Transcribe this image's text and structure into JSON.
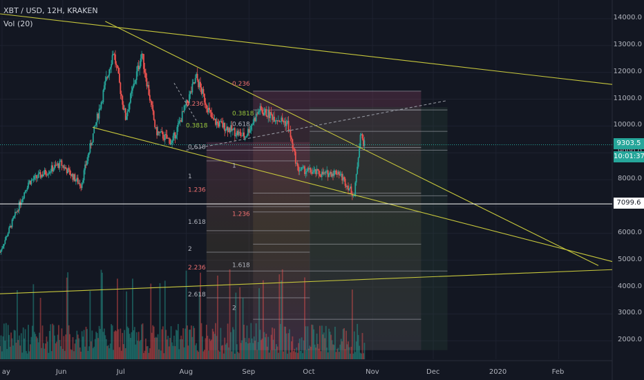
{
  "header": {
    "symbol_line": "XBT / USD, 12H, KRAKEN",
    "indicator": "Vol (20)"
  },
  "y_axis": {
    "ticks": [
      "14000.0",
      "13000.0",
      "12000.0",
      "11000.0",
      "10000.0",
      "9000.0",
      "8000.0",
      "7000.0",
      "6000.0",
      "5000.0",
      "4000.0",
      "3000.0",
      "2000.0"
    ]
  },
  "x_axis": {
    "ticks": [
      "ay",
      "Jun",
      "Jul",
      "Aug",
      "Sep",
      "Oct",
      "Nov",
      "Dec",
      "2020",
      "Feb"
    ]
  },
  "price_tags": {
    "last_price": "9303.5",
    "countdown": "10:01:37",
    "level": "7099.6"
  },
  "fib_labels": {
    "set1": [
      "0.618",
      "1",
      "1.236",
      "1.618",
      "2",
      "2.236",
      "2.618"
    ],
    "set2": [
      "0.236",
      "0.3818",
      "0.618",
      "1",
      "1.236",
      "1.618",
      "2"
    ],
    "set3": [
      "0.236",
      "0.3818"
    ]
  },
  "colors": {
    "background": "#131722",
    "up": "#26a69a",
    "down": "#ef5350",
    "trendline": "#c8c83c",
    "grid": "#1e2230"
  },
  "chart_data": {
    "type": "candlestick",
    "series_name": "XBT / USD, 12H, KRAKEN",
    "x_range": [
      "2019-05-01",
      "2020-03-10"
    ],
    "ylim": [
      1500,
      14500
    ],
    "key_prices": [
      {
        "date": "2019-05-01",
        "close": 5300
      },
      {
        "date": "2019-05-15",
        "close": 7900
      },
      {
        "date": "2019-05-31",
        "close": 8600
      },
      {
        "date": "2019-06-10",
        "close": 7800
      },
      {
        "date": "2019-06-26",
        "close": 12800
      },
      {
        "date": "2019-07-02",
        "close": 10300
      },
      {
        "date": "2019-07-10",
        "close": 12700
      },
      {
        "date": "2019-07-17",
        "close": 9800
      },
      {
        "date": "2019-07-25",
        "close": 9400
      },
      {
        "date": "2019-08-06",
        "close": 11800
      },
      {
        "date": "2019-08-14",
        "close": 10200
      },
      {
        "date": "2019-08-30",
        "close": 9600
      },
      {
        "date": "2019-09-06",
        "close": 10600
      },
      {
        "date": "2019-09-20",
        "close": 10100
      },
      {
        "date": "2019-09-25",
        "close": 8400
      },
      {
        "date": "2019-10-08",
        "close": 8200
      },
      {
        "date": "2019-10-15",
        "close": 8300
      },
      {
        "date": "2019-10-23",
        "close": 7400
      },
      {
        "date": "2019-10-26",
        "close": 9700
      },
      {
        "date": "2019-10-28",
        "close": 9303.5
      }
    ],
    "last_price": 9303.5,
    "horizontal_level": 7099.6,
    "volume_indicator": "Vol (20)",
    "volume_scale": [
      0,
      1
    ]
  }
}
